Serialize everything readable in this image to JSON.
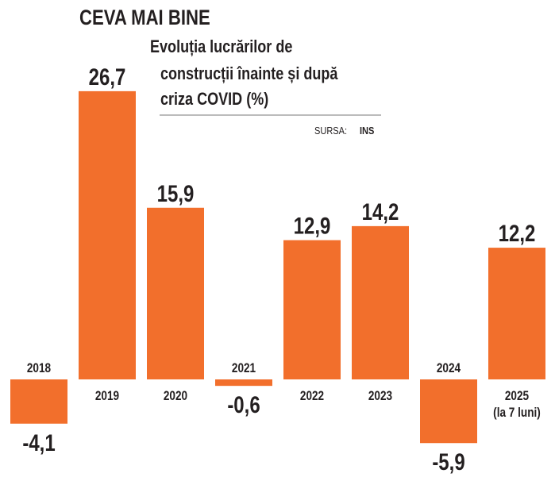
{
  "chart_data": {
    "type": "bar",
    "headline": "CEVA MAI BINE",
    "title": "Evoluția lucrărilor de construcții înainte și după criza COVID (%)",
    "title_lines": [
      "Evoluția lucrărilor de",
      "construcții înainte și după",
      "criza COVID (%)"
    ],
    "source_label": "SURSA:",
    "source": "INS",
    "categories": [
      "2018",
      "2019",
      "2020",
      "2021",
      "2022",
      "2023",
      "2024",
      "2025"
    ],
    "category_notes": [
      "",
      "",
      "",
      "",
      "",
      "",
      "",
      "(la 7 luni)"
    ],
    "values": [
      -4.1,
      26.7,
      15.9,
      -0.6,
      12.9,
      14.2,
      -5.9,
      12.2
    ],
    "value_labels": [
      "-4,1",
      "26,7",
      "15,9",
      "-0,6",
      "12,9",
      "14,2",
      "-5,9",
      "12,2"
    ],
    "xlabel": "",
    "ylabel": "%",
    "bar_color": "#f26f2c"
  }
}
